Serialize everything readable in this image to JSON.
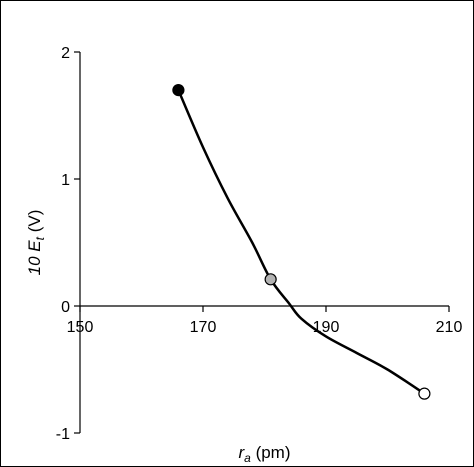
{
  "chart_data": {
    "type": "line",
    "title": "",
    "xlabel": {
      "main": "r",
      "sub": "a",
      "unit": "(pm)"
    },
    "ylabel": {
      "pre": "10 ",
      "main": "E",
      "sub": "t",
      "unit": "(V)"
    },
    "xlim": [
      150,
      210
    ],
    "ylim": [
      -1,
      2
    ],
    "xticks": [
      150,
      170,
      190,
      210
    ],
    "yticks": [
      -1,
      0,
      1,
      2
    ],
    "xtick_labels": [
      "150",
      "170",
      "190",
      "210"
    ],
    "ytick_labels": [
      "-1",
      "0",
      "1",
      "2"
    ],
    "grid": false,
    "legend": "none",
    "series": [
      {
        "points": [
          {
            "x": 166,
            "y": 1.7,
            "fill": "#000000"
          },
          {
            "x": 181,
            "y": 0.21,
            "fill": "#b3b3b3"
          },
          {
            "x": 206,
            "y": -0.69,
            "fill": "#ffffff"
          }
        ],
        "curve": [
          [
            166,
            1.7
          ],
          [
            170,
            1.25
          ],
          [
            174,
            0.85
          ],
          [
            178,
            0.5
          ],
          [
            181,
            0.21
          ],
          [
            184,
            0.02
          ],
          [
            186,
            -0.1
          ],
          [
            190,
            -0.24
          ],
          [
            195,
            -0.37
          ],
          [
            200,
            -0.5
          ],
          [
            206,
            -0.69
          ]
        ],
        "line_color": "#000000"
      }
    ]
  }
}
